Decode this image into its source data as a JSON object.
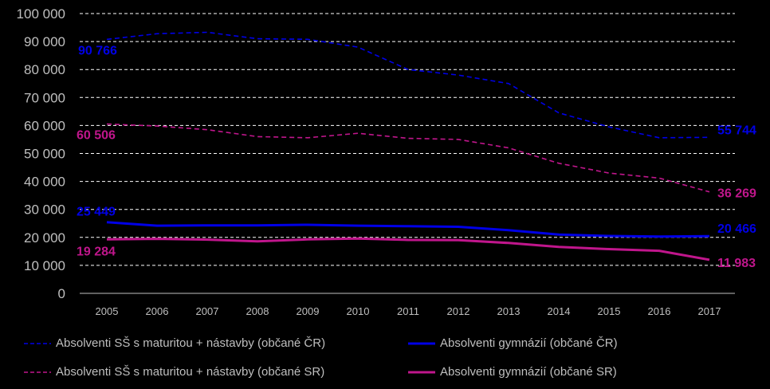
{
  "chart_data": {
    "type": "line",
    "title": "",
    "xlabel": "",
    "ylabel": "",
    "x": [
      "2005",
      "2006",
      "2007",
      "2008",
      "2009",
      "2010",
      "2011",
      "2012",
      "2013",
      "2014",
      "2015",
      "2016",
      "2017"
    ],
    "ylim": [
      0,
      100000
    ],
    "yticks": [
      0,
      10000,
      20000,
      30000,
      40000,
      50000,
      60000,
      70000,
      80000,
      90000,
      100000
    ],
    "ytick_labels": [
      "0",
      "10 000",
      "20 000",
      "30 000",
      "40 000",
      "50 000",
      "60 000",
      "70 000",
      "80 000",
      "90 000",
      "100 000"
    ],
    "grid": true,
    "legend_position": "bottom",
    "series": [
      {
        "name": "Absolventi SŠ s maturitou + nástavby (občané ČR)",
        "color": "#0000e6",
        "style": "dashed",
        "values": [
          90766,
          92800,
          93300,
          91000,
          90800,
          88000,
          80000,
          78000,
          75000,
          64500,
          59500,
          55600,
          55744
        ],
        "start_label": "90 766",
        "end_label": "55 744"
      },
      {
        "name": "Absolventi gymnázií (občané ČR)",
        "color": "#0000e6",
        "style": "solid",
        "values": [
          25449,
          24200,
          24300,
          24300,
          24500,
          24200,
          24000,
          23800,
          22600,
          21000,
          20500,
          20300,
          20466
        ],
        "start_label": "25 449",
        "end_label": "20 466"
      },
      {
        "name": "Absolventi SŠ s maturitou + nástavby (občané SR)",
        "color": "#c0168c",
        "style": "dashed",
        "values": [
          60506,
          59800,
          58500,
          56000,
          55600,
          57200,
          55400,
          55000,
          52000,
          46500,
          43000,
          41200,
          36269
        ],
        "start_label": "60 506",
        "end_label": "36 269"
      },
      {
        "name": "Absolventi gymnázií (občané SR)",
        "color": "#c0168c",
        "style": "solid",
        "values": [
          19284,
          19500,
          19200,
          18600,
          19300,
          19600,
          19100,
          19000,
          18000,
          16600,
          15800,
          15200,
          11983
        ],
        "start_label": "19 284",
        "end_label": "11 983"
      }
    ]
  }
}
